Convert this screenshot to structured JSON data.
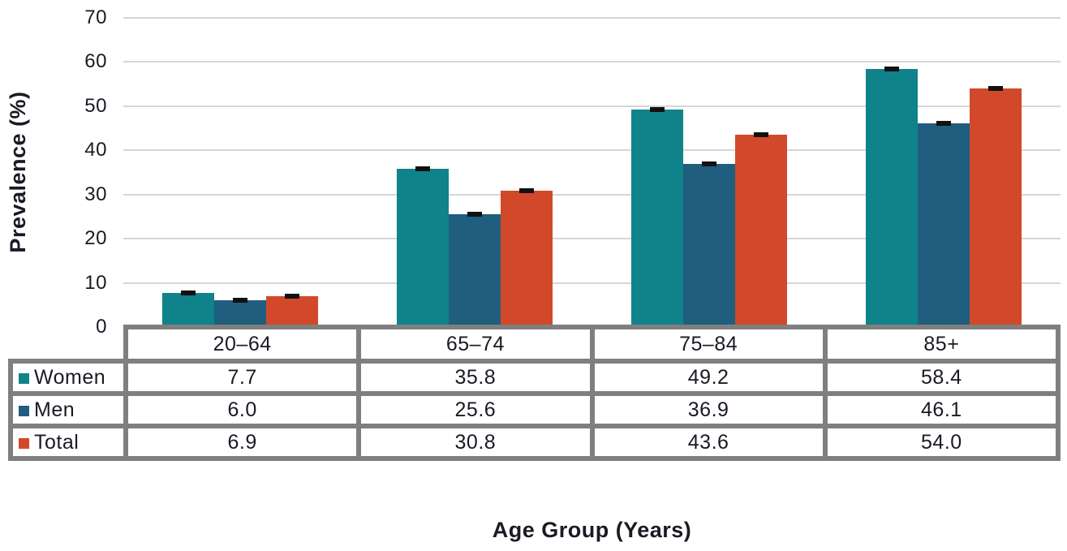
{
  "chart_data": {
    "type": "bar",
    "title": "",
    "xlabel": "Age Group (Years)",
    "ylabel": "Prevalence (%)",
    "ylim": [
      0,
      70
    ],
    "yticks": [
      0,
      10,
      20,
      30,
      40,
      50,
      60,
      70
    ],
    "grid": true,
    "error_bars": true,
    "legend_position": "table-rows-left",
    "categories": [
      "20–64",
      "65–74",
      "75–84",
      "85+"
    ],
    "series": [
      {
        "name": "Women",
        "color": "#0f8389",
        "values": [
          7.7,
          35.8,
          49.2,
          58.4
        ]
      },
      {
        "name": "Men",
        "color": "#1f5e7e",
        "values": [
          6.0,
          25.6,
          36.9,
          46.1
        ]
      },
      {
        "name": "Total",
        "color": "#d1492a",
        "values": [
          6.9,
          30.8,
          43.6,
          54.0
        ]
      }
    ]
  },
  "table": {
    "columns": [
      "20–64",
      "65–74",
      "75–84",
      "85+"
    ],
    "rows": [
      {
        "label": "Women",
        "values": [
          "7.7",
          "35.8",
          "49.2",
          "58.4"
        ]
      },
      {
        "label": "Men",
        "values": [
          "6.0",
          "25.6",
          "36.9",
          "46.1"
        ]
      },
      {
        "label": "Total",
        "values": [
          "6.9",
          "30.8",
          "43.6",
          "54.0"
        ]
      }
    ]
  },
  "style": {
    "grid_color": "#d6d6d6",
    "table_border_color": "#7f7f7f",
    "text_color": "#1a1a24",
    "error_bar_color": "#111111",
    "background": "#ffffff"
  }
}
